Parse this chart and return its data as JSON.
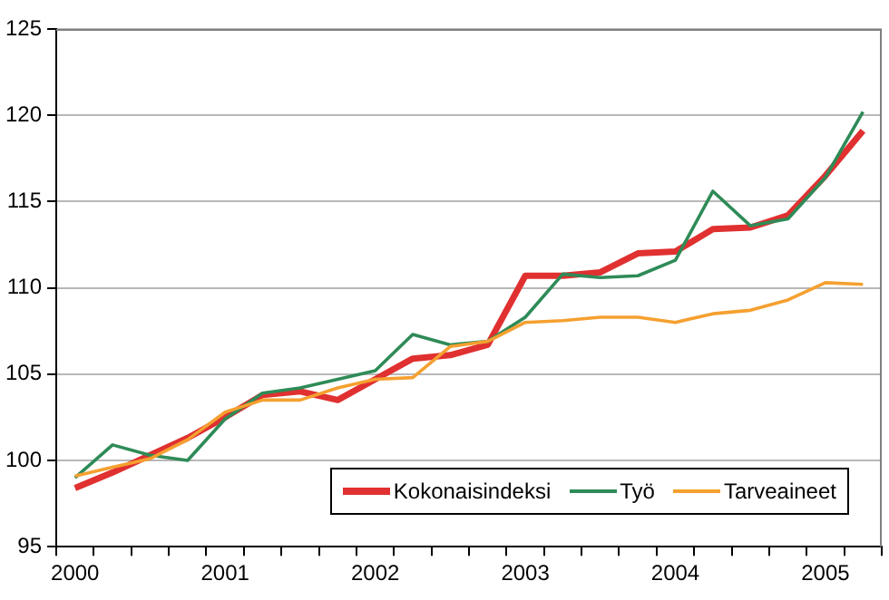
{
  "chart_data": {
    "type": "line",
    "categories": [
      "2000",
      null,
      null,
      null,
      "2001",
      null,
      null,
      null,
      "2002",
      null,
      null,
      null,
      "2003",
      null,
      null,
      null,
      "2004",
      null,
      null,
      null,
      "2005",
      null
    ],
    "series": [
      {
        "name": "Kokonaisindeksi",
        "color": "#e03030",
        "values": [
          98.4,
          99.3,
          100.3,
          101.3,
          102.5,
          103.8,
          104.0,
          103.5,
          104.7,
          105.9,
          106.1,
          106.7,
          110.7,
          110.7,
          110.9,
          112.0,
          112.1,
          113.4,
          113.5,
          114.2,
          116.5,
          119.1
        ]
      },
      {
        "name": "Työ",
        "color": "#2e8b57",
        "values": [
          99.0,
          100.9,
          100.3,
          100.0,
          102.4,
          103.9,
          104.2,
          104.7,
          105.2,
          107.3,
          106.7,
          106.9,
          108.3,
          110.8,
          110.6,
          110.7,
          111.6,
          115.6,
          113.6,
          114.0,
          116.4,
          120.2
        ]
      },
      {
        "name": "Tarveaineet",
        "color": "#f5a030",
        "values": [
          99.1,
          99.6,
          100.1,
          101.2,
          102.8,
          103.5,
          103.5,
          104.2,
          104.7,
          104.8,
          106.6,
          106.9,
          108.0,
          108.1,
          108.3,
          108.3,
          108.0,
          108.5,
          108.7,
          109.3,
          110.3,
          110.2
        ]
      }
    ],
    "ylim": [
      95,
      125
    ],
    "yticks": [
      95,
      100,
      105,
      110,
      115,
      120,
      125
    ],
    "grid": "y",
    "legend": "bottom right",
    "marker": "none",
    "line_style": "solid"
  }
}
